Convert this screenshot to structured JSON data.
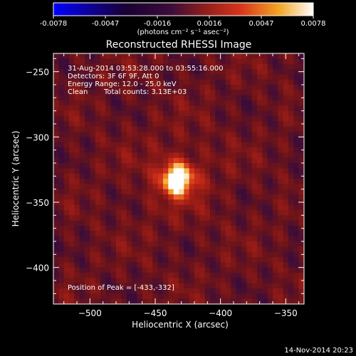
{
  "colorbar": {
    "tick_labels": [
      "-0.0078",
      "-0.0047",
      "-0.0016",
      "0.0016",
      "0.0047",
      "0.0078"
    ],
    "units_label": "(photons cm⁻² s⁻¹ asec⁻²)",
    "colors": [
      "#0000ff",
      "#1a0033",
      "#3a0c3a",
      "#8e1d1d",
      "#d8341a",
      "#f3a623",
      "#ffffff"
    ]
  },
  "chart_data": {
    "type": "heatmap",
    "title": "Reconstructed RHESSI Image",
    "xlabel": "Heliocentric X (arcsec)",
    "ylabel": "Heliocentric Y (arcsec)",
    "xlim": [
      -528,
      -336
    ],
    "ylim": [
      -428,
      -236
    ],
    "x_ticks": [
      -500,
      -450,
      -400,
      -350
    ],
    "y_ticks": [
      -250,
      -300,
      -350,
      -400
    ],
    "x_tick_labels": [
      "−500",
      "−450",
      "−400",
      "−350"
    ],
    "y_tick_labels": [
      "−250",
      "−300",
      "−350",
      "−400"
    ],
    "peak": {
      "x": -433,
      "y": -332
    },
    "annotations": [
      "31-Aug-2014 03:53:28.000 to 03:55:16.000",
      "Detectors: 3F 6F 9F, Att 0",
      "Energy Range: 12.0 - 25.0 keV",
      "Clean",
      "Total counts: 3.13E+03"
    ],
    "peak_label": "Position of Peak = [-433,-332]",
    "grid": false
  },
  "footer": {
    "date_stamp": "14-Nov-2014 20:23"
  }
}
